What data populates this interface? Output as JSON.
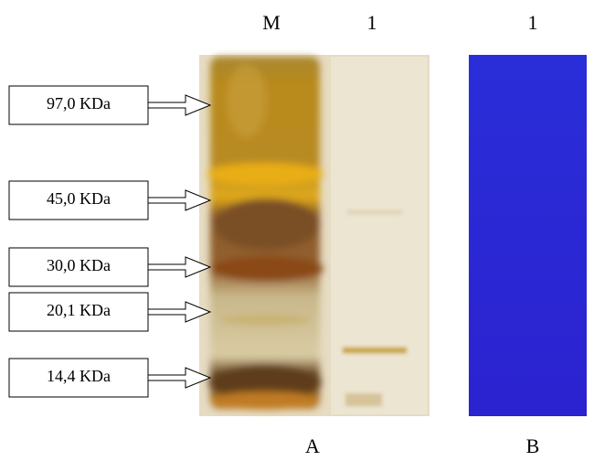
{
  "lanes": [
    "M",
    "1",
    "1"
  ],
  "panels": [
    "A",
    "B"
  ],
  "markers": [
    "97,0 KDa",
    "45,0 KDa",
    "30,0 KDa",
    "20,1 KDa",
    "14,4 KDa"
  ]
}
